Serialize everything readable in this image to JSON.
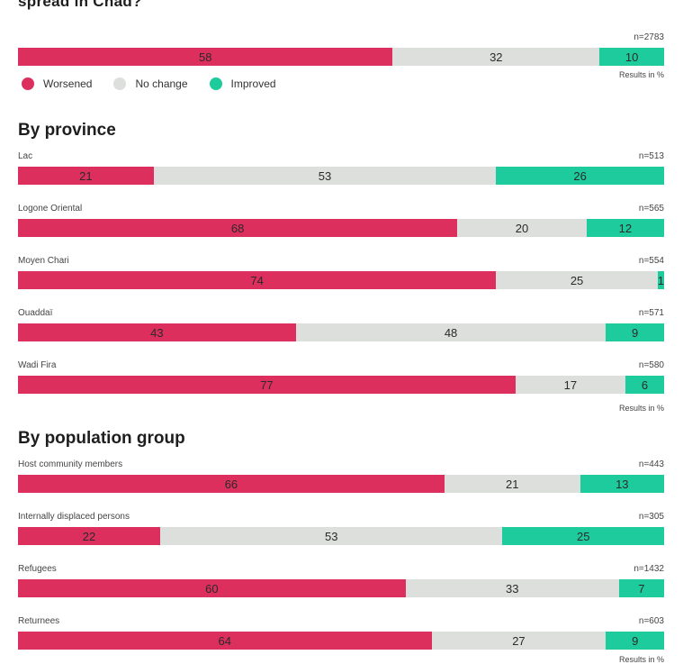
{
  "title": "spread in Chad?",
  "colors": {
    "worsened": "#dc2f5e",
    "no_change": "#dcdfdc",
    "improved": "#1ecb9c"
  },
  "legend": [
    {
      "label": "Worsened",
      "key": "worsened"
    },
    {
      "label": "No change",
      "key": "no_change"
    },
    {
      "label": "Improved",
      "key": "improved"
    }
  ],
  "results_note": "Results in %",
  "chart_data": {
    "type": "bar",
    "stacked": true,
    "orientation": "horizontal",
    "unit": "%",
    "series_names": [
      "Worsened",
      "No change",
      "Improved"
    ],
    "overall": {
      "label": "",
      "n": "n=2783",
      "values": [
        58,
        32,
        10
      ]
    },
    "sections": [
      {
        "title": "By province",
        "rows": [
          {
            "label": "Lac",
            "n": "n=513",
            "values": [
              21,
              53,
              26
            ]
          },
          {
            "label": "Logone Oriental",
            "n": "n=565",
            "values": [
              68,
              20,
              12
            ]
          },
          {
            "label": "Moyen Chari",
            "n": "n=554",
            "values": [
              74,
              25,
              1
            ]
          },
          {
            "label": "Ouaddaï",
            "n": "n=571",
            "values": [
              43,
              48,
              9
            ]
          },
          {
            "label": "Wadi Fira",
            "n": "n=580",
            "values": [
              77,
              17,
              6
            ]
          }
        ]
      },
      {
        "title": "By population group",
        "rows": [
          {
            "label": "Host community members",
            "n": "n=443",
            "values": [
              66,
              21,
              13
            ]
          },
          {
            "label": "Internally displaced persons",
            "n": "n=305",
            "values": [
              22,
              53,
              25
            ]
          },
          {
            "label": "Refugees",
            "n": "n=1432",
            "values": [
              60,
              33,
              7
            ]
          },
          {
            "label": "Returnees",
            "n": "n=603",
            "values": [
              64,
              27,
              9
            ]
          }
        ]
      }
    ]
  }
}
